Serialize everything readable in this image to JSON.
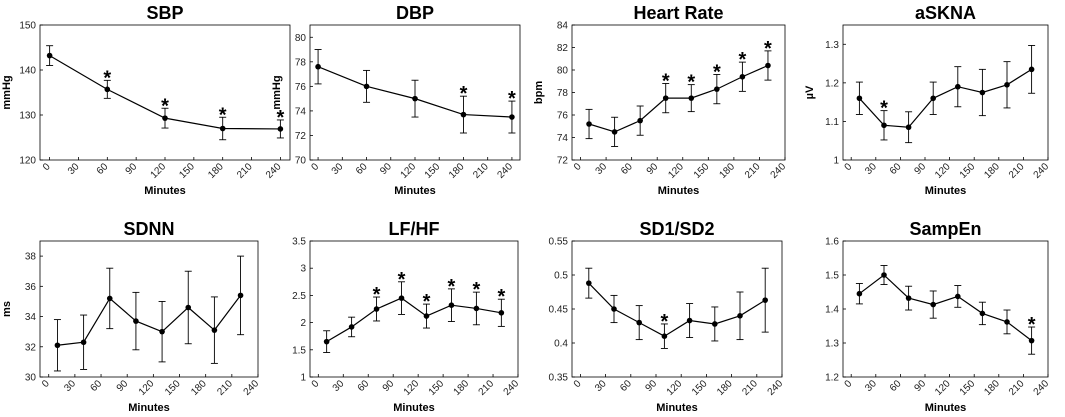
{
  "chart_data": [
    {
      "type": "line",
      "title": "SBP",
      "xlabel": "Minutes",
      "ylabel": "mmHg",
      "xlim": [
        -10,
        250
      ],
      "xticks": [
        0,
        30,
        60,
        90,
        120,
        150,
        180,
        210,
        240
      ],
      "ylim": [
        120,
        150
      ],
      "yticks": [
        120,
        130,
        140,
        150
      ],
      "x": [
        0,
        60,
        120,
        180,
        240
      ],
      "y": [
        143.2,
        135.7,
        129.3,
        127.0,
        126.9
      ],
      "err": [
        2.2,
        2.0,
        2.2,
        2.5,
        2.0
      ],
      "significant": [
        false,
        true,
        true,
        true,
        true
      ],
      "star_label": "*"
    },
    {
      "type": "line",
      "title": "DBP",
      "xlabel": "Minutes",
      "ylabel": "mmHg",
      "xlim": [
        -10,
        250
      ],
      "xticks": [
        0,
        30,
        60,
        90,
        120,
        150,
        180,
        210,
        240
      ],
      "ylim": [
        70,
        81
      ],
      "yticks": [
        70,
        72,
        74,
        76,
        78,
        80
      ],
      "x": [
        0,
        60,
        120,
        180,
        240
      ],
      "y": [
        77.6,
        76.0,
        75.0,
        73.7,
        73.5
      ],
      "err": [
        1.4,
        1.3,
        1.5,
        1.5,
        1.3
      ],
      "significant": [
        false,
        false,
        false,
        true,
        true
      ],
      "star_label": "*"
    },
    {
      "type": "line",
      "title": "Heart Rate",
      "xlabel": "Minutes",
      "ylabel": "bpm",
      "xlim": [
        -10,
        240
      ],
      "xticks": [
        0,
        30,
        60,
        90,
        120,
        150,
        180,
        210,
        240
      ],
      "ylim": [
        72,
        84
      ],
      "yticks": [
        72,
        74,
        76,
        78,
        80,
        82,
        84
      ],
      "x": [
        10,
        40,
        70,
        100,
        130,
        160,
        190,
        220
      ],
      "y": [
        75.2,
        74.5,
        75.5,
        77.5,
        77.5,
        78.3,
        79.4,
        80.4
      ],
      "err": [
        1.3,
        1.3,
        1.3,
        1.3,
        1.2,
        1.3,
        1.3,
        1.3
      ],
      "significant": [
        false,
        false,
        false,
        true,
        true,
        true,
        true,
        true
      ],
      "star_label": "*"
    },
    {
      "type": "line",
      "title": "aSKNA",
      "xlabel": "Minutes",
      "ylabel": "µV",
      "xlim": [
        -10,
        240
      ],
      "xticks": [
        0,
        30,
        60,
        90,
        120,
        150,
        180,
        210,
        240
      ],
      "ylim": [
        1,
        1.35
      ],
      "yticks": [
        1,
        1.1,
        1.2,
        1.3
      ],
      "x": [
        10,
        40,
        70,
        100,
        130,
        160,
        190,
        220
      ],
      "y": [
        1.16,
        1.09,
        1.085,
        1.16,
        1.19,
        1.175,
        1.195,
        1.235
      ],
      "err": [
        0.042,
        0.038,
        0.04,
        0.042,
        0.052,
        0.06,
        0.06,
        0.062
      ],
      "significant": [
        false,
        true,
        false,
        false,
        false,
        false,
        false,
        false
      ],
      "star_label": "*"
    },
    {
      "type": "line",
      "title": "SDNN",
      "xlabel": "Minutes",
      "ylabel": "ms",
      "xlim": [
        -10,
        240
      ],
      "xticks": [
        0,
        30,
        60,
        90,
        120,
        150,
        180,
        210,
        240
      ],
      "ylim": [
        30,
        39
      ],
      "yticks": [
        30,
        32,
        34,
        36,
        38
      ],
      "x": [
        10,
        40,
        70,
        100,
        130,
        160,
        190,
        220
      ],
      "y": [
        32.1,
        32.3,
        35.2,
        33.7,
        33.0,
        34.6,
        33.1,
        35.4
      ],
      "err": [
        1.7,
        1.8,
        2.0,
        1.9,
        2.0,
        2.4,
        2.2,
        2.6
      ],
      "significant": [
        false,
        false,
        false,
        false,
        false,
        false,
        false,
        false
      ],
      "star_label": "*"
    },
    {
      "type": "line",
      "title": "LF/HF",
      "xlabel": "Minutes",
      "ylabel": "",
      "xlim": [
        -10,
        240
      ],
      "xticks": [
        0,
        30,
        60,
        90,
        120,
        150,
        180,
        210,
        240
      ],
      "ylim": [
        1,
        3.5
      ],
      "yticks": [
        1,
        1.5,
        2,
        2.5,
        3,
        3.5
      ],
      "x": [
        10,
        40,
        70,
        100,
        130,
        160,
        190,
        220
      ],
      "y": [
        1.65,
        1.92,
        2.25,
        2.45,
        2.12,
        2.32,
        2.26,
        2.18
      ],
      "err": [
        0.2,
        0.18,
        0.22,
        0.3,
        0.22,
        0.3,
        0.3,
        0.25
      ],
      "significant": [
        false,
        false,
        true,
        true,
        true,
        true,
        true,
        true
      ],
      "star_label": "*"
    },
    {
      "type": "line",
      "title": "SD1/SD2",
      "xlabel": "Minutes",
      "ylabel": "",
      "xlim": [
        -10,
        240
      ],
      "xticks": [
        0,
        30,
        60,
        90,
        120,
        150,
        180,
        210,
        240
      ],
      "ylim": [
        0.35,
        0.55
      ],
      "yticks": [
        0.35,
        0.4,
        0.45,
        0.5,
        0.55
      ],
      "x": [
        10,
        40,
        70,
        100,
        130,
        160,
        190,
        220
      ],
      "y": [
        0.488,
        0.45,
        0.43,
        0.41,
        0.433,
        0.428,
        0.44,
        0.463
      ],
      "err": [
        0.022,
        0.02,
        0.025,
        0.018,
        0.025,
        0.025,
        0.035,
        0.047
      ],
      "significant": [
        false,
        false,
        false,
        true,
        false,
        false,
        false,
        false
      ],
      "star_label": "*"
    },
    {
      "type": "line",
      "title": "SampEn",
      "xlabel": "Minutes",
      "ylabel": "",
      "xlim": [
        -10,
        240
      ],
      "xticks": [
        0,
        30,
        60,
        90,
        120,
        150,
        180,
        210,
        240
      ],
      "ylim": [
        1.2,
        1.6
      ],
      "yticks": [
        1.2,
        1.3,
        1.4,
        1.5,
        1.6
      ],
      "x": [
        10,
        40,
        70,
        100,
        130,
        160,
        190,
        220
      ],
      "y": [
        1.445,
        1.5,
        1.432,
        1.413,
        1.437,
        1.387,
        1.362,
        1.307
      ],
      "err": [
        0.03,
        0.028,
        0.035,
        0.04,
        0.032,
        0.033,
        0.035,
        0.04
      ],
      "significant": [
        false,
        false,
        false,
        false,
        false,
        false,
        false,
        true
      ],
      "star_label": "*"
    }
  ]
}
